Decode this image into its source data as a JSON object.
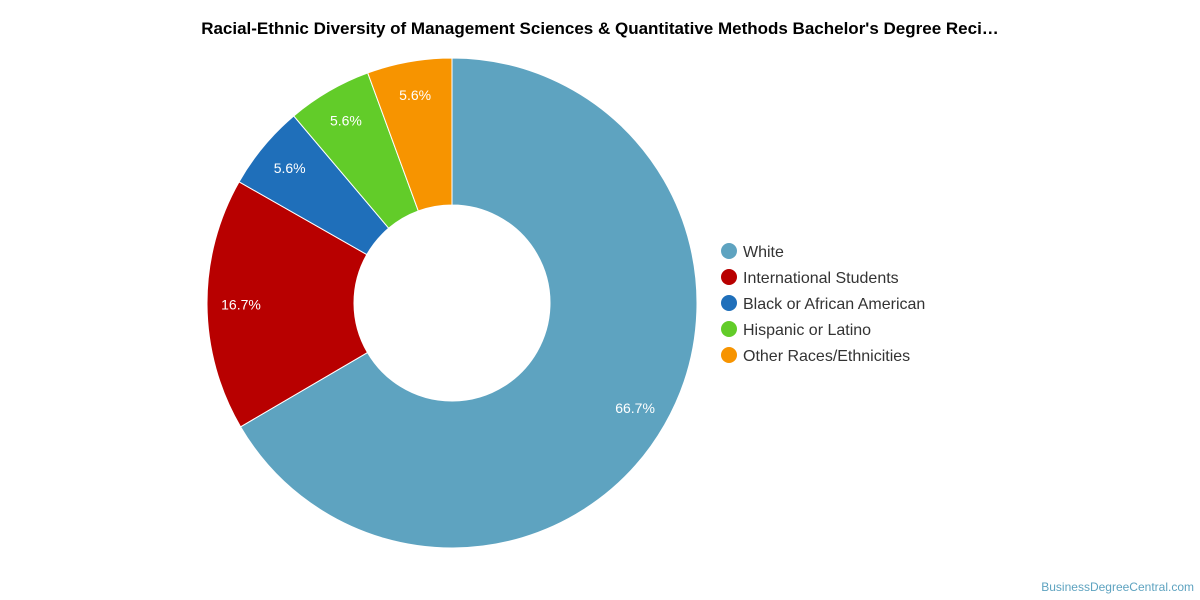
{
  "chart_data": {
    "type": "pie",
    "variant": "donut",
    "title": "Racial-Ethnic Diversity of Management Sciences & Quantitative Methods Bachelor's Degree Reci…",
    "categories": [
      "White",
      "International Students",
      "Black or African American",
      "Hispanic or Latino",
      "Other Races/Ethnicities"
    ],
    "values": [
      66.7,
      16.7,
      5.6,
      5.6,
      5.6
    ],
    "value_labels": [
      "66.7%",
      "16.7%",
      "5.6%",
      "5.6%",
      "5.6%"
    ],
    "colors": [
      "#5ea3c0",
      "#b80000",
      "#1f6fba",
      "#62cc29",
      "#f79400"
    ],
    "legend_position": "right"
  },
  "credit": "BusinessDegreeCentral.com"
}
